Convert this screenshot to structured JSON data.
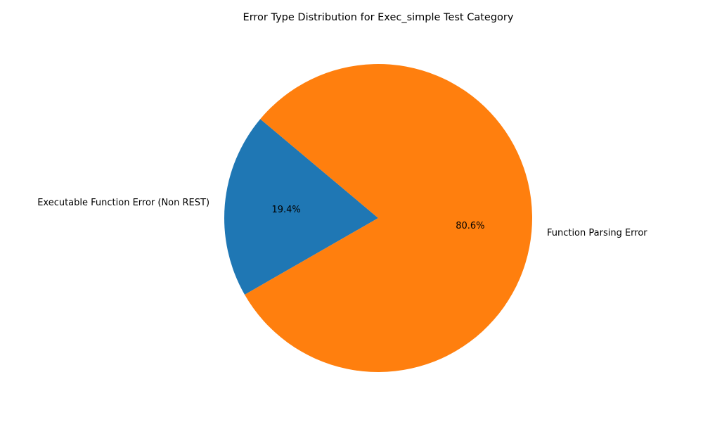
{
  "chart_data": {
    "type": "pie",
    "title": "Error Type Distribution for Exec_simple Test Category",
    "categories": [
      "Executable Function Error (Non REST)",
      "Function Parsing Error"
    ],
    "values": [
      19.4,
      80.6
    ],
    "percent_labels": [
      "19.4%",
      "80.6%"
    ],
    "colors": [
      "#1f77b4",
      "#ff7f0e"
    ],
    "start_angle_deg": 140,
    "counterclockwise": true,
    "legend": "none"
  }
}
